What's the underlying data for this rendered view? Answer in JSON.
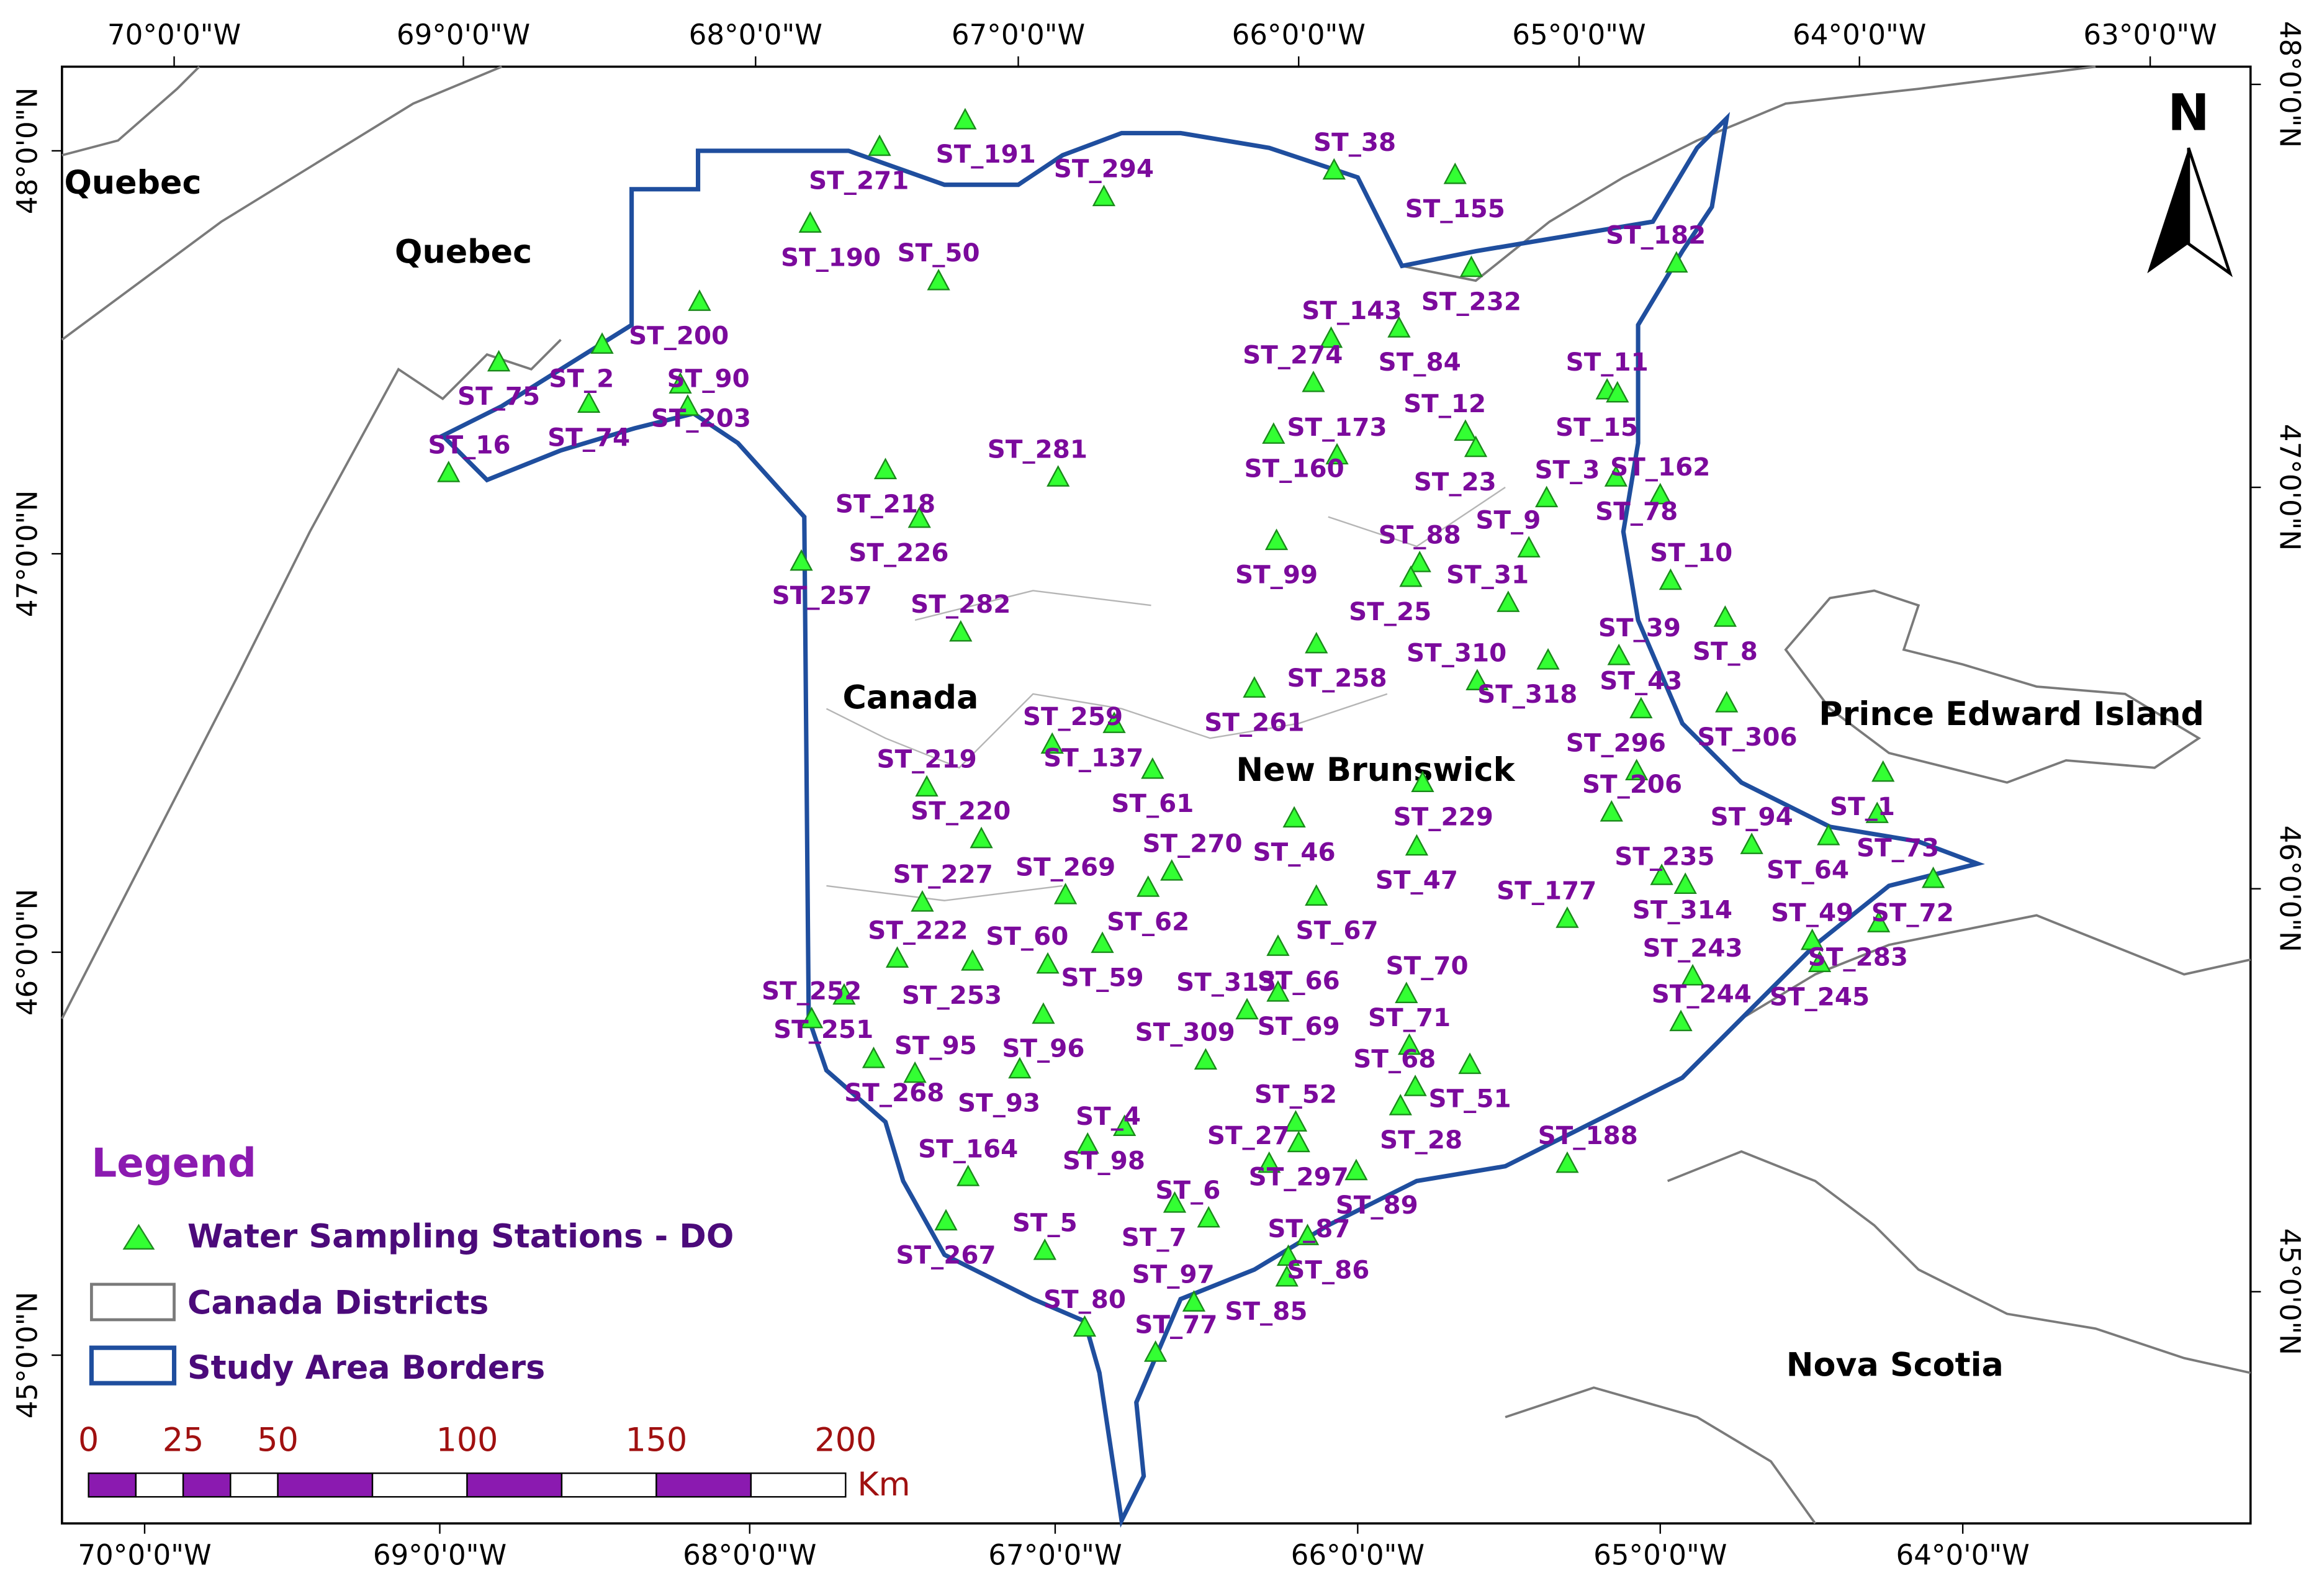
{
  "map": {
    "regions": [
      "Quebec",
      "Quebec",
      "Canada",
      "New Brunswick",
      "Prince Edward Island",
      "Nova Scotia"
    ],
    "north": "N",
    "longitude_top": [
      "70°0'0\"W",
      "69°0'0\"W",
      "68°0'0\"W",
      "67°0'0\"W",
      "66°0'0\"W",
      "65°0'0\"W",
      "64°0'0\"W",
      "63°0'0\"W"
    ],
    "longitude_bottom": [
      "70°0'0\"W",
      "69°0'0\"W",
      "68°0'0\"W",
      "67°0'0\"W",
      "66°0'0\"W",
      "65°0'0\"W",
      "64°0'0\"W"
    ],
    "latitude_left": [
      "48°0'0\"N",
      "47°0'0\"N",
      "46°0'0\"N",
      "45°0'0\"N"
    ],
    "latitude_right": [
      "48°0'0\"N",
      "47°0'0\"N",
      "46°0'0\"N",
      "45°0'0\"N"
    ],
    "stations": [
      "ST_191",
      "ST_294",
      "ST_271",
      "ST_38",
      "ST_155",
      "ST_182",
      "ST_190",
      "ST_50",
      "ST_200",
      "ST_143",
      "ST_232",
      "ST_274",
      "ST_84",
      "ST_11",
      "ST_2",
      "ST_90",
      "ST_75",
      "ST_12",
      "ST_203",
      "ST_173",
      "ST_15",
      "ST_16",
      "ST_74",
      "ST_281",
      "ST_160",
      "ST_162",
      "ST_23",
      "ST_3",
      "ST_218",
      "ST_9",
      "ST_78",
      "ST_88",
      "ST_226",
      "ST_10",
      "ST_99",
      "ST_31",
      "ST_257",
      "ST_282",
      "ST_25",
      "ST_39",
      "ST_8",
      "ST_310",
      "ST_258",
      "ST_43",
      "ST_318",
      "ST_259",
      "ST_261",
      "ST_296",
      "ST_306",
      "ST_219",
      "ST_137",
      "ST_206",
      "ST_61",
      "ST_220",
      "ST_229",
      "ST_94",
      "ST_1",
      "ST_270",
      "ST_46",
      "ST_235",
      "ST_73",
      "ST_269",
      "ST_64",
      "ST_227",
      "ST_47",
      "ST_177",
      "ST_314",
      "ST_49",
      "ST_72",
      "ST_222",
      "ST_62",
      "ST_60",
      "ST_67",
      "ST_243",
      "ST_283",
      "ST_70",
      "ST_59",
      "ST_313",
      "ST_66",
      "ST_252",
      "ST_253",
      "ST_244",
      "ST_245",
      "ST_309",
      "ST_69",
      "ST_71",
      "ST_251",
      "ST_95",
      "ST_96",
      "ST_68",
      "ST_268",
      "ST_52",
      "ST_93",
      "ST_4",
      "ST_51",
      "ST_27",
      "ST_28",
      "ST_164",
      "ST_98",
      "ST_188",
      "ST_297",
      "ST_6",
      "ST_89",
      "ST_5",
      "ST_7",
      "ST_87",
      "ST_267",
      "ST_97",
      "ST_86",
      "ST_80",
      "ST_85",
      "ST_77"
    ]
  },
  "legend": {
    "title": "Legend",
    "items": [
      "Water Sampling Stations - DO",
      "Canada Districts",
      "Study Area Borders"
    ]
  },
  "scale_bar": {
    "ticks": [
      0,
      25,
      50,
      100,
      150,
      200
    ],
    "unit": "Km"
  }
}
